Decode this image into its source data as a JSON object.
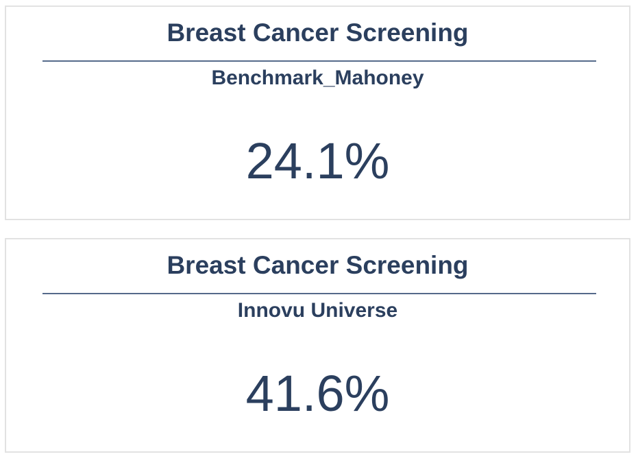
{
  "cards": [
    {
      "title": "Breast Cancer Screening",
      "subtitle": "Benchmark_Mahoney",
      "value": "24.1%"
    },
    {
      "title": "Breast Cancer Screening",
      "subtitle": "Innovu Universe",
      "value": "41.6%"
    }
  ],
  "colors": {
    "text": "#2b3f5e",
    "divider": "#556a8a",
    "card_border": "#e2e2e2",
    "background": "#ffffff"
  }
}
